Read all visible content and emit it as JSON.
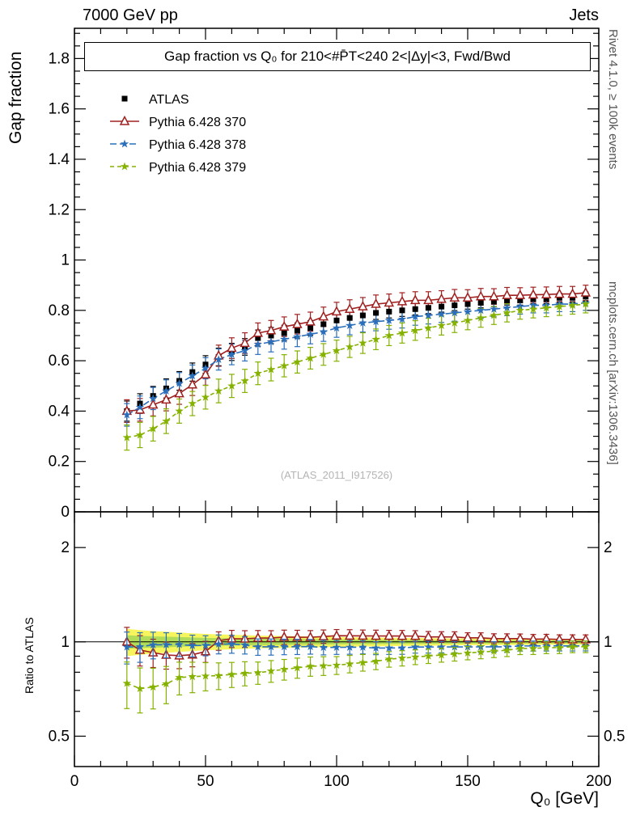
{
  "header": {
    "left": "7000 GeV pp",
    "right": "Jets"
  },
  "side_notes": {
    "top": "Rivet 4.1.0, ≥ 100k events",
    "bottom": "mcplots.cern.ch [arXiv:1306.3436]"
  },
  "main_panel": {
    "title": "Gap fraction vs Q₀ for 210<#P̄T<240  2<|Δy|<3, Fwd/Bwd",
    "ylabel": "Gap fraction",
    "watermark": "(ATLAS_2011_I917526)"
  },
  "ratio_panel": {
    "ylabel": "Ratio to ATLAS"
  },
  "chart_data": {
    "type": "line",
    "title": "Gap fraction vs Q₀ for 210<#P̄T<240  2<|Δy|<3, Fwd/Bwd",
    "xlabel": "Q₀ [GeV]",
    "x_range": [
      0,
      200
    ],
    "x_major": 50,
    "x_minor": 10,
    "x_ticks": [
      0,
      50,
      100,
      150,
      200
    ],
    "main": {
      "ylabel": "Gap fraction",
      "y_range": [
        0,
        1.92
      ],
      "y_major": 0.2,
      "y_minor": 0.05
    },
    "ratio": {
      "ylabel": "Ratio to ATLAS",
      "scale": "log",
      "y_range": [
        0.4,
        2.6
      ],
      "y_ticks": [
        2,
        1,
        0.5
      ],
      "minor_ticks": [
        0.6,
        0.7,
        0.8,
        0.9
      ]
    },
    "band": {
      "outer": "#f7f55e",
      "inner": "#b0dc5a"
    },
    "x": [
      20,
      25,
      30,
      35,
      40,
      45,
      50,
      55,
      60,
      65,
      70,
      75,
      80,
      85,
      90,
      95,
      100,
      105,
      110,
      115,
      120,
      125,
      130,
      135,
      140,
      145,
      150,
      155,
      160,
      165,
      170,
      175,
      180,
      185,
      190,
      195
    ],
    "series": [
      {
        "name": "ATLAS",
        "marker": "square",
        "line": "none",
        "color": "#000000",
        "values": [
          0.4,
          0.43,
          0.46,
          0.49,
          0.52,
          0.555,
          0.585,
          0.615,
          0.635,
          0.655,
          0.69,
          0.7,
          0.71,
          0.72,
          0.73,
          0.745,
          0.76,
          0.77,
          0.78,
          0.79,
          0.795,
          0.8,
          0.805,
          0.81,
          0.815,
          0.82,
          0.825,
          0.83,
          0.835,
          0.84,
          0.84,
          0.845,
          0.845,
          0.85,
          0.85,
          0.855
        ],
        "errors": [
          0.04,
          0.039,
          0.038,
          0.038,
          0.037,
          0.036,
          0.035,
          0.035,
          0.034,
          0.033,
          0.032,
          0.032,
          0.031,
          0.03,
          0.029,
          0.029,
          0.028,
          0.027,
          0.026,
          0.026,
          0.025,
          0.024,
          0.023,
          0.023,
          0.022,
          0.021,
          0.02,
          0.02,
          0.02,
          0.019,
          0.019,
          0.019,
          0.018,
          0.018,
          0.018,
          0.018
        ]
      },
      {
        "name": "Pythia 6.428 370",
        "marker": "triangle-open",
        "line": "solid",
        "color": "#a02020",
        "values": [
          0.4,
          0.405,
          0.425,
          0.445,
          0.47,
          0.505,
          0.545,
          0.62,
          0.65,
          0.67,
          0.71,
          0.72,
          0.735,
          0.745,
          0.755,
          0.775,
          0.795,
          0.805,
          0.815,
          0.825,
          0.83,
          0.835,
          0.84,
          0.84,
          0.845,
          0.85,
          0.85,
          0.855,
          0.855,
          0.86,
          0.86,
          0.862,
          0.863,
          0.865,
          0.865,
          0.87
        ],
        "errors": [
          0.045,
          0.045,
          0.044,
          0.044,
          0.043,
          0.043,
          0.042,
          0.042,
          0.041,
          0.041,
          0.04,
          0.04,
          0.039,
          0.039,
          0.038,
          0.038,
          0.037,
          0.037,
          0.036,
          0.036,
          0.035,
          0.035,
          0.034,
          0.034,
          0.033,
          0.033,
          0.032,
          0.032,
          0.031,
          0.031,
          0.03,
          0.03,
          0.03,
          0.03,
          0.03,
          0.03
        ]
      },
      {
        "name": "Pythia 6.428 378",
        "marker": "star",
        "line": "dashed",
        "dash": "8 4",
        "color": "#2b6fbb",
        "values": [
          0.385,
          0.415,
          0.45,
          0.48,
          0.51,
          0.54,
          0.57,
          0.605,
          0.625,
          0.64,
          0.665,
          0.675,
          0.685,
          0.695,
          0.705,
          0.715,
          0.73,
          0.74,
          0.75,
          0.755,
          0.76,
          0.765,
          0.775,
          0.78,
          0.785,
          0.79,
          0.795,
          0.8,
          0.805,
          0.81,
          0.815,
          0.82,
          0.82,
          0.825,
          0.825,
          0.83
        ],
        "errors": [
          0.045,
          0.045,
          0.044,
          0.044,
          0.043,
          0.043,
          0.042,
          0.042,
          0.041,
          0.041,
          0.04,
          0.04,
          0.039,
          0.039,
          0.038,
          0.038,
          0.037,
          0.037,
          0.036,
          0.036,
          0.035,
          0.035,
          0.034,
          0.034,
          0.033,
          0.033,
          0.032,
          0.032,
          0.031,
          0.031,
          0.03,
          0.03,
          0.03,
          0.03,
          0.03,
          0.03
        ]
      },
      {
        "name": "Pythia 6.428 379",
        "marker": "star",
        "line": "dashed",
        "dash": "5 4",
        "color": "#85b200",
        "values": [
          0.295,
          0.305,
          0.33,
          0.36,
          0.4,
          0.43,
          0.455,
          0.48,
          0.5,
          0.52,
          0.55,
          0.565,
          0.58,
          0.595,
          0.61,
          0.625,
          0.64,
          0.655,
          0.67,
          0.685,
          0.7,
          0.71,
          0.72,
          0.73,
          0.74,
          0.75,
          0.76,
          0.77,
          0.78,
          0.79,
          0.8,
          0.805,
          0.81,
          0.815,
          0.82,
          0.825
        ],
        "errors": [
          0.05,
          0.05,
          0.049,
          0.049,
          0.048,
          0.048,
          0.047,
          0.047,
          0.046,
          0.046,
          0.045,
          0.045,
          0.044,
          0.044,
          0.043,
          0.043,
          0.042,
          0.042,
          0.041,
          0.041,
          0.04,
          0.04,
          0.039,
          0.039,
          0.038,
          0.038,
          0.037,
          0.037,
          0.036,
          0.036,
          0.035,
          0.035,
          0.035,
          0.035,
          0.035,
          0.035
        ]
      }
    ]
  }
}
